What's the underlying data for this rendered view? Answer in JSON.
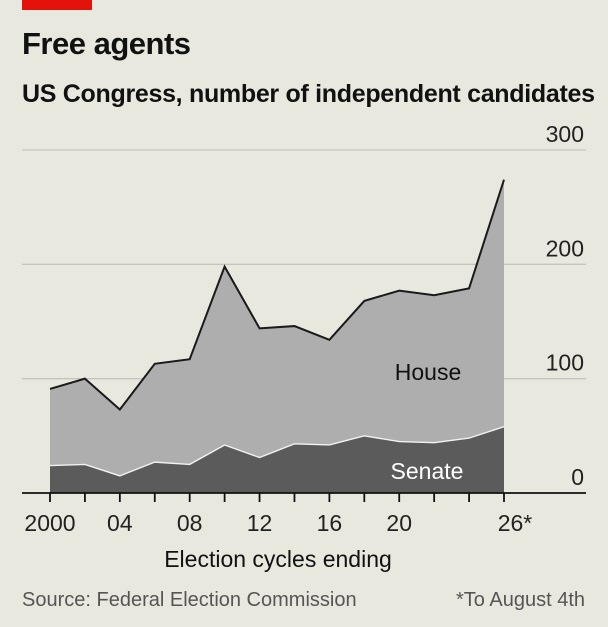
{
  "title": "Free agents",
  "subtitle": "US Congress, number of independent candidates",
  "xlabel": "Election cycles ending",
  "source": "Source: Federal Election Commission",
  "footnote": "*To August 4th",
  "colors": {
    "accent": "#e3120b",
    "background": "#e9e8df",
    "house": "#aeaeae",
    "senate": "#5b5b5b",
    "grid": "#c4c4bc"
  },
  "chart_data": {
    "type": "area",
    "stacked": true,
    "x": [
      2000,
      2002,
      2004,
      2006,
      2008,
      2010,
      2012,
      2014,
      2016,
      2018,
      2020,
      2022,
      2024,
      2026
    ],
    "x_tick_labels": [
      "2000",
      "04",
      "08",
      "12",
      "16",
      "20",
      "26*"
    ],
    "x_tick_positions": [
      2000,
      2004,
      2008,
      2012,
      2016,
      2020,
      2026
    ],
    "ylim": [
      0,
      300
    ],
    "yticks": [
      0,
      100,
      200,
      300
    ],
    "grid": true,
    "series": [
      {
        "name": "Senate",
        "values": [
          24,
          25,
          15,
          27,
          25,
          42,
          31,
          43,
          42,
          50,
          45,
          44,
          48,
          58
        ]
      },
      {
        "name": "House",
        "values": [
          67,
          75,
          58,
          86,
          92,
          156,
          113,
          103,
          92,
          118,
          132,
          129,
          131,
          216
        ]
      }
    ]
  }
}
